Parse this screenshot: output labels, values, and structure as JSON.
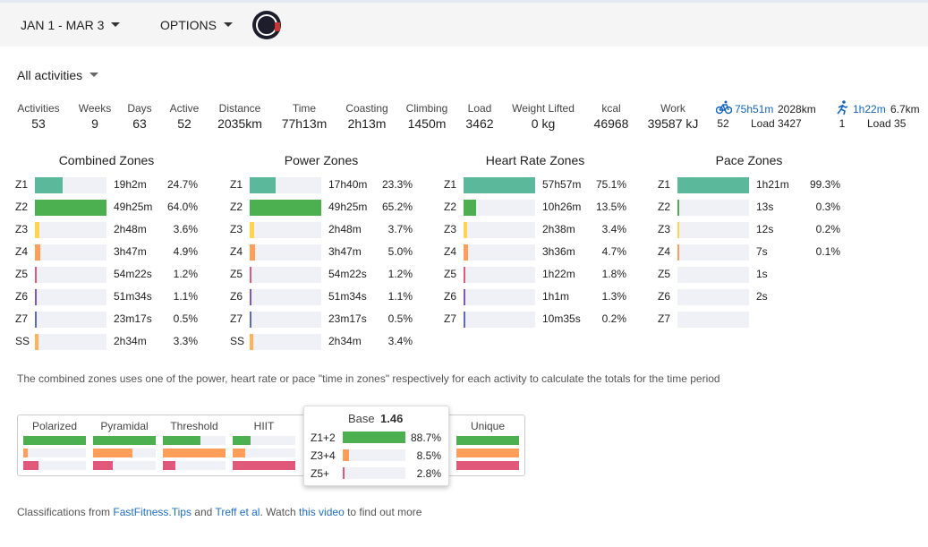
{
  "header": {
    "date_range": "JAN 1 - MAR 3",
    "options": "OPTIONS"
  },
  "filter": "All activities",
  "stats": [
    {
      "label": "Activities",
      "value": "53"
    },
    {
      "label": "Weeks",
      "value": "9"
    },
    {
      "label": "Days",
      "value": "63"
    },
    {
      "label": "Active",
      "value": "52"
    },
    {
      "label": "Distance",
      "value": "2035km"
    },
    {
      "label": "Time",
      "value": "77h13m"
    },
    {
      "label": "Coasting",
      "value": "2h13m"
    },
    {
      "label": "Climbing",
      "value": "1450m"
    },
    {
      "label": "Load",
      "value": "3462"
    },
    {
      "label": "Weight Lifted",
      "value": "0 kg"
    },
    {
      "label": "kcal",
      "value": "46968"
    },
    {
      "label": "Work",
      "value": "39587 kJ"
    }
  ],
  "sports": [
    {
      "time": "75h51m",
      "distance": "2028km",
      "count": "52",
      "load": "Load 3427"
    },
    {
      "time": "1h22m",
      "distance": "6.7km",
      "count": "1",
      "load": "Load 35"
    }
  ],
  "zone_colors": {
    "Z1": "#5bb89b",
    "Z2": "#4caf50",
    "Z3": "#ffd54f",
    "Z4": "#ff9e58",
    "Z5": "#e0587a",
    "Z6": "#7e57c2",
    "Z7": "#5c6bc0",
    "SS": "#ffb356"
  },
  "zone_tables": [
    {
      "title": "Combined Zones",
      "zones": [
        "Z1",
        "Z2",
        "Z3",
        "Z4",
        "Z5",
        "Z6",
        "Z7",
        "SS"
      ],
      "times": [
        "19h2m",
        "49h25m",
        "2h48m",
        "3h47m",
        "54m22s",
        "51m34s",
        "23m17s",
        "2h34m"
      ],
      "values": [
        24.7,
        64.0,
        3.6,
        4.9,
        1.2,
        1.1,
        0.5,
        3.3
      ],
      "value_labels": [
        "24.7%",
        "64.0%",
        "3.6%",
        "4.9%",
        "1.2%",
        "1.1%",
        "0.5%",
        "3.3%"
      ]
    },
    {
      "title": "Power Zones",
      "zones": [
        "Z1",
        "Z2",
        "Z3",
        "Z4",
        "Z5",
        "Z6",
        "Z7",
        "SS"
      ],
      "times": [
        "17h40m",
        "49h25m",
        "2h48m",
        "3h47m",
        "54m22s",
        "51m34s",
        "23m17s",
        "2h34m"
      ],
      "values": [
        23.3,
        65.2,
        3.7,
        5.0,
        1.2,
        1.1,
        0.5,
        3.4
      ],
      "value_labels": [
        "23.3%",
        "65.2%",
        "3.7%",
        "5.0%",
        "1.2%",
        "1.1%",
        "0.5%",
        "3.4%"
      ]
    },
    {
      "title": "Heart Rate Zones",
      "zones": [
        "Z1",
        "Z2",
        "Z3",
        "Z4",
        "Z5",
        "Z6",
        "Z7"
      ],
      "times": [
        "57h57m",
        "10h26m",
        "2h38m",
        "3h36m",
        "1h22m",
        "1h1m",
        "10m35s"
      ],
      "values": [
        75.1,
        13.5,
        3.4,
        4.7,
        1.8,
        1.3,
        0.2
      ],
      "value_labels": [
        "75.1%",
        "13.5%",
        "3.4%",
        "4.7%",
        "1.8%",
        "1.3%",
        "0.2%"
      ]
    },
    {
      "title": "Pace Zones",
      "zones": [
        "Z1",
        "Z2",
        "Z3",
        "Z4",
        "Z5",
        "Z6",
        "Z7"
      ],
      "times": [
        "1h21m",
        "13s",
        "12s",
        "7s",
        "1s",
        "2s",
        null
      ],
      "values": [
        99.3,
        0.3,
        0.2,
        0.1,
        null,
        null,
        null
      ],
      "value_labels": [
        "99.3%",
        "0.3%",
        "0.2%",
        "0.1%",
        null,
        null,
        null
      ]
    }
  ],
  "note": "The combined zones uses one of the power, heart rate or pace \"time in zones\" respectively for each activity to calculate the totals for the time period",
  "classification": {
    "bar_colors": [
      "#4caf50",
      "#ff9e58",
      "#e0587a"
    ],
    "models": [
      {
        "name": "Polarized",
        "values": [
          100,
          7,
          24
        ]
      },
      {
        "name": "Pyramidal",
        "values": [
          100,
          63,
          32
        ]
      },
      {
        "name": "Threshold",
        "values": [
          60,
          100,
          20
        ]
      },
      {
        "name": "HIIT",
        "values": [
          29,
          20,
          100
        ]
      },
      {
        "name": "Unique",
        "values": [
          100,
          100,
          100
        ]
      }
    ],
    "tooltip": {
      "title": "Base",
      "score": "1.46",
      "labels": [
        "Z1+2",
        "Z3+4",
        "Z5+"
      ],
      "values": [
        88.7,
        8.5,
        2.8
      ],
      "value_labels": [
        "88.7%",
        "8.5%",
        "2.8%"
      ]
    }
  },
  "footer": [
    {
      "text": "Classifications from ",
      "link": false
    },
    {
      "text": "FastFitness.Tips",
      "link": true
    },
    {
      "text": " and ",
      "link": false
    },
    {
      "text": "Treff et al",
      "link": true
    },
    {
      "text": ". Watch ",
      "link": false
    },
    {
      "text": "this video",
      "link": true
    },
    {
      "text": " to find out more",
      "link": false
    }
  ]
}
